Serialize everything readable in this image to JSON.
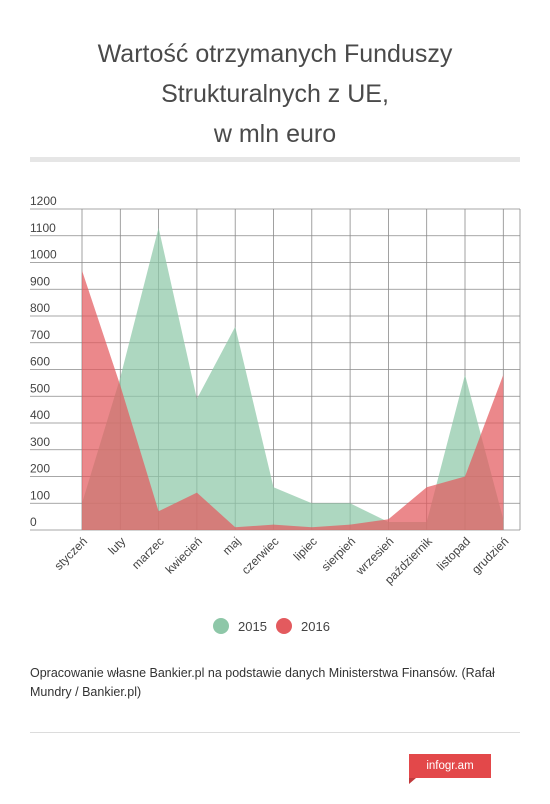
{
  "header": {
    "title_lines": [
      "Wartość otrzymanych Funduszy",
      "Strukturalnych z UE,",
      "w mln euro"
    ]
  },
  "colors": {
    "s2015": "#8ec7a8",
    "s2016": "#e35a5e",
    "grid": "#8a8a8a",
    "brand": "#e3484a"
  },
  "chart_data": {
    "type": "area",
    "title": "Wartość otrzymanych Funduszy Strukturalnych z UE, w mln euro",
    "xlabel": "",
    "ylabel": "",
    "categories": [
      "styczeń",
      "luty",
      "marzec",
      "kwiecień",
      "maj",
      "czerwiec",
      "lipiec",
      "sierpień",
      "wrzesień",
      "październik",
      "listopad",
      "grudzień"
    ],
    "yticks": [
      0,
      100,
      200,
      300,
      400,
      500,
      600,
      700,
      800,
      900,
      1000,
      1100,
      1200
    ],
    "ylim": [
      0,
      1200
    ],
    "grid": true,
    "legend": "bottom",
    "series": [
      {
        "name": "2015",
        "values": [
          100,
          570,
          1130,
          490,
          760,
          160,
          100,
          100,
          30,
          30,
          580,
          40
        ]
      },
      {
        "name": "2016",
        "values": [
          970,
          540,
          70,
          140,
          10,
          20,
          10,
          20,
          40,
          160,
          200,
          580
        ]
      }
    ]
  },
  "source_text": "Opracowanie własne Bankier.pl na podstawie danych Ministerstwa Finansów. (Rafał Mundry / Bankier.pl)",
  "brand": "infogr.am"
}
